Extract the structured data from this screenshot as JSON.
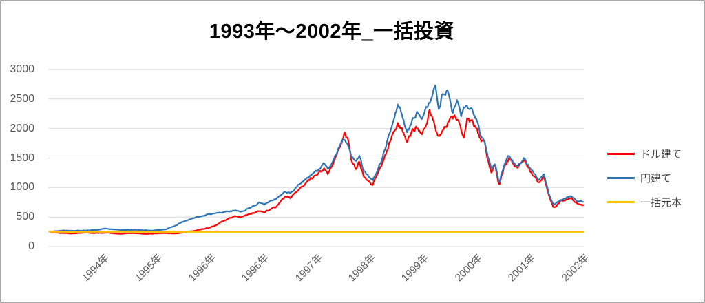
{
  "page": {
    "background": "#FFFFFF",
    "border_color": "#A9A9A9"
  },
  "chart_data": {
    "type": "line",
    "title": "1993年～2002年_一括投資",
    "x_tick_labels": [
      "1994年",
      "1995年",
      "1996年",
      "1996年",
      "1997年",
      "1998年",
      "1999年",
      "2000年",
      "2001年",
      "2002年"
    ],
    "y_tick_labels": [
      "0",
      "500",
      "1000",
      "1500",
      "2000",
      "2500",
      "3000"
    ],
    "ylim": [
      0,
      3000
    ],
    "y_step": 500,
    "x_range_years": [
      1993.0,
      2002.2
    ],
    "grid": true,
    "grid_color": "#D9D9D9",
    "axis_label_color": "#595959",
    "legend_position": "right",
    "series": [
      {
        "key": "dollar",
        "name": "ドル建て",
        "color": "#FF0000",
        "jitter": 0.04,
        "anchors": [
          [
            1993.0,
            250
          ],
          [
            1993.08,
            238
          ],
          [
            1993.17,
            230
          ],
          [
            1993.28,
            224
          ],
          [
            1993.4,
            221
          ],
          [
            1993.52,
            230
          ],
          [
            1993.62,
            237
          ],
          [
            1993.75,
            226
          ],
          [
            1993.88,
            230
          ],
          [
            1994.0,
            233
          ],
          [
            1994.12,
            221
          ],
          [
            1994.25,
            216
          ],
          [
            1994.38,
            227
          ],
          [
            1994.5,
            222
          ],
          [
            1994.62,
            213
          ],
          [
            1994.75,
            220
          ],
          [
            1994.88,
            224
          ],
          [
            1995.0,
            229
          ],
          [
            1995.1,
            219
          ],
          [
            1995.22,
            228
          ],
          [
            1995.32,
            240
          ],
          [
            1995.45,
            262
          ],
          [
            1995.6,
            290
          ],
          [
            1995.75,
            318
          ],
          [
            1995.88,
            365
          ],
          [
            1996.0,
            440
          ],
          [
            1996.1,
            480
          ],
          [
            1996.2,
            520
          ],
          [
            1996.3,
            498
          ],
          [
            1996.42,
            540
          ],
          [
            1996.52,
            565
          ],
          [
            1996.62,
            610
          ],
          [
            1996.7,
            580
          ],
          [
            1996.8,
            635
          ],
          [
            1996.9,
            660
          ],
          [
            1997.0,
            790
          ],
          [
            1997.08,
            850
          ],
          [
            1997.15,
            820
          ],
          [
            1997.25,
            920
          ],
          [
            1997.35,
            1010
          ],
          [
            1997.45,
            1100
          ],
          [
            1997.55,
            1170
          ],
          [
            1997.65,
            1240
          ],
          [
            1997.73,
            1310
          ],
          [
            1997.8,
            1220
          ],
          [
            1997.9,
            1420
          ],
          [
            1998.0,
            1660
          ],
          [
            1998.08,
            1950
          ],
          [
            1998.14,
            1820
          ],
          [
            1998.2,
            1480
          ],
          [
            1998.28,
            1320
          ],
          [
            1998.34,
            1450
          ],
          [
            1998.42,
            1180
          ],
          [
            1998.5,
            1100
          ],
          [
            1998.57,
            1030
          ],
          [
            1998.65,
            1230
          ],
          [
            1998.72,
            1380
          ],
          [
            1998.8,
            1560
          ],
          [
            1998.9,
            1850
          ],
          [
            1999.0,
            2080
          ],
          [
            1999.08,
            1960
          ],
          [
            1999.16,
            1790
          ],
          [
            1999.26,
            1960
          ],
          [
            1999.34,
            2010
          ],
          [
            1999.42,
            1870
          ],
          [
            1999.5,
            2050
          ],
          [
            1999.55,
            2310
          ],
          [
            1999.62,
            2100
          ],
          [
            1999.7,
            1850
          ],
          [
            1999.8,
            2000
          ],
          [
            1999.9,
            2150
          ],
          [
            2000.0,
            2190
          ],
          [
            2000.08,
            2080
          ],
          [
            2000.14,
            1800
          ],
          [
            2000.2,
            2140
          ],
          [
            2000.28,
            2100
          ],
          [
            2000.36,
            2000
          ],
          [
            2000.44,
            1800
          ],
          [
            2000.5,
            1750
          ],
          [
            2000.55,
            1500
          ],
          [
            2000.62,
            1260
          ],
          [
            2000.68,
            1380
          ],
          [
            2000.75,
            1030
          ],
          [
            2000.83,
            1320
          ],
          [
            2000.92,
            1490
          ],
          [
            2001.05,
            1320
          ],
          [
            2001.19,
            1470
          ],
          [
            2001.3,
            1250
          ],
          [
            2001.43,
            1100
          ],
          [
            2001.52,
            1180
          ],
          [
            2001.61,
            870
          ],
          [
            2001.69,
            655
          ],
          [
            2001.81,
            760
          ],
          [
            2001.92,
            800
          ],
          [
            2001.99,
            820
          ],
          [
            2002.09,
            740
          ],
          [
            2002.2,
            700
          ]
        ]
      },
      {
        "key": "yen",
        "name": "円建て",
        "color": "#2E75B6",
        "jitter": 0.034,
        "anchors": [
          [
            1993.0,
            250
          ],
          [
            1993.08,
            262
          ],
          [
            1993.18,
            270
          ],
          [
            1993.3,
            274
          ],
          [
            1993.42,
            264
          ],
          [
            1993.55,
            270
          ],
          [
            1993.68,
            277
          ],
          [
            1993.8,
            284
          ],
          [
            1993.95,
            306
          ],
          [
            1994.05,
            298
          ],
          [
            1994.15,
            288
          ],
          [
            1994.28,
            278
          ],
          [
            1994.4,
            284
          ],
          [
            1994.52,
            276
          ],
          [
            1994.65,
            280
          ],
          [
            1994.78,
            272
          ],
          [
            1994.9,
            278
          ],
          [
            1995.02,
            298
          ],
          [
            1995.12,
            335
          ],
          [
            1995.25,
            400
          ],
          [
            1995.38,
            448
          ],
          [
            1995.5,
            487
          ],
          [
            1995.62,
            515
          ],
          [
            1995.75,
            545
          ],
          [
            1995.88,
            562
          ],
          [
            1996.0,
            578
          ],
          [
            1996.1,
            595
          ],
          [
            1996.2,
            610
          ],
          [
            1996.3,
            588
          ],
          [
            1996.42,
            640
          ],
          [
            1996.52,
            680
          ],
          [
            1996.62,
            738
          ],
          [
            1996.7,
            705
          ],
          [
            1996.8,
            770
          ],
          [
            1996.9,
            810
          ],
          [
            1997.0,
            880
          ],
          [
            1997.08,
            925
          ],
          [
            1997.15,
            895
          ],
          [
            1997.25,
            990
          ],
          [
            1997.35,
            1090
          ],
          [
            1997.45,
            1180
          ],
          [
            1997.55,
            1255
          ],
          [
            1997.65,
            1315
          ],
          [
            1997.73,
            1390
          ],
          [
            1997.8,
            1300
          ],
          [
            1997.9,
            1490
          ],
          [
            1998.0,
            1680
          ],
          [
            1998.08,
            1830
          ],
          [
            1998.14,
            1750
          ],
          [
            1998.2,
            1560
          ],
          [
            1998.28,
            1430
          ],
          [
            1998.34,
            1530
          ],
          [
            1998.42,
            1270
          ],
          [
            1998.5,
            1190
          ],
          [
            1998.57,
            1140
          ],
          [
            1998.65,
            1300
          ],
          [
            1998.72,
            1460
          ],
          [
            1998.8,
            1700
          ],
          [
            1998.9,
            2030
          ],
          [
            1999.0,
            2400
          ],
          [
            1999.08,
            2260
          ],
          [
            1999.16,
            1900
          ],
          [
            1999.26,
            2160
          ],
          [
            1999.34,
            2270
          ],
          [
            1999.42,
            2110
          ],
          [
            1999.5,
            2350
          ],
          [
            1999.58,
            2520
          ],
          [
            1999.65,
            2720
          ],
          [
            1999.71,
            2290
          ],
          [
            1999.78,
            2600
          ],
          [
            1999.88,
            2620
          ],
          [
            1999.95,
            2250
          ],
          [
            2000.02,
            2510
          ],
          [
            2000.1,
            2250
          ],
          [
            2000.18,
            2430
          ],
          [
            2000.28,
            2300
          ],
          [
            2000.36,
            2140
          ],
          [
            2000.44,
            1860
          ],
          [
            2000.5,
            1800
          ],
          [
            2000.55,
            1560
          ],
          [
            2000.62,
            1310
          ],
          [
            2000.68,
            1430
          ],
          [
            2000.75,
            1070
          ],
          [
            2000.83,
            1360
          ],
          [
            2000.92,
            1530
          ],
          [
            2001.05,
            1360
          ],
          [
            2001.19,
            1500
          ],
          [
            2001.3,
            1290
          ],
          [
            2001.43,
            1140
          ],
          [
            2001.52,
            1220
          ],
          [
            2001.61,
            905
          ],
          [
            2001.69,
            700
          ],
          [
            2001.81,
            790
          ],
          [
            2001.92,
            830
          ],
          [
            2001.99,
            865
          ],
          [
            2002.09,
            775
          ],
          [
            2002.2,
            760
          ]
        ]
      },
      {
        "key": "principal",
        "name": "一括元本",
        "color": "#FFC000",
        "jitter": 0,
        "anchors": [
          [
            1993.0,
            250
          ],
          [
            2002.2,
            250
          ]
        ]
      }
    ]
  }
}
